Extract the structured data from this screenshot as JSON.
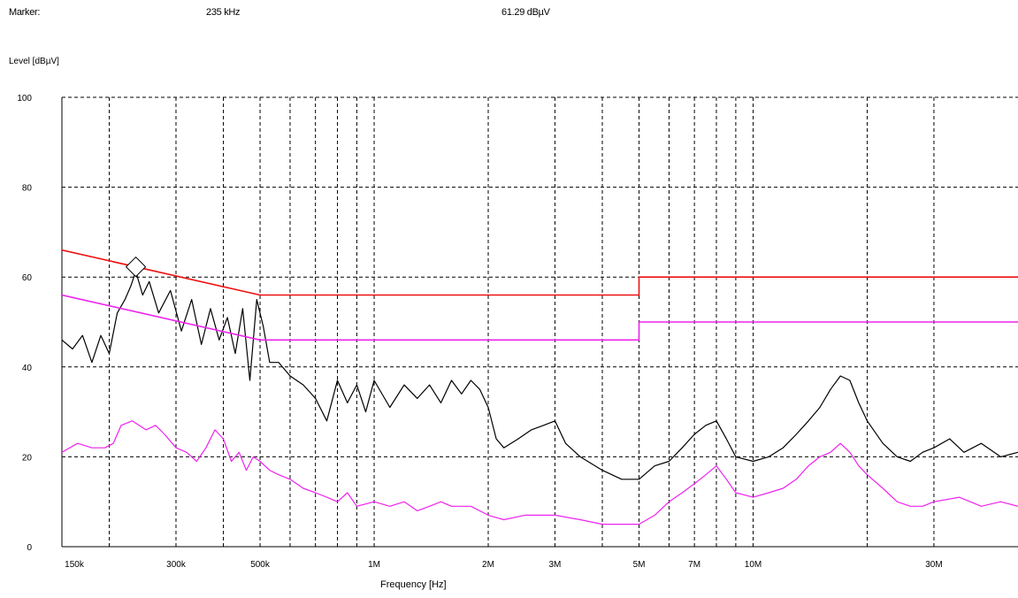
{
  "header": {
    "marker_label": "Marker:",
    "marker_freq": "235 kHz",
    "marker_level": "61.29 dBµV"
  },
  "colors": {
    "limit_qp": "#ee1111",
    "limit_avg": "#ee22ee",
    "trace_peak": "#000000",
    "trace_avg": "#ee22ee",
    "grid": "#000000"
  },
  "chart_data": {
    "type": "line",
    "xscale": "log",
    "xlabel": "Frequency [Hz]",
    "ylabel": "Level [dBµV]",
    "xlim": [
      150000,
      50000000
    ],
    "ylim": [
      0,
      100
    ],
    "grid": true,
    "yticks": [
      {
        "value": 0,
        "label": "0"
      },
      {
        "value": 20,
        "label": "20"
      },
      {
        "value": 40,
        "label": "40"
      },
      {
        "value": 60,
        "label": "60"
      },
      {
        "value": 80,
        "label": "80"
      },
      {
        "value": 100,
        "label": "100"
      }
    ],
    "xticks": [
      {
        "value": 150000,
        "label": "150k"
      },
      {
        "value": 300000,
        "label": "300k"
      },
      {
        "value": 500000,
        "label": "500k"
      },
      {
        "value": 1000000,
        "label": "1M"
      },
      {
        "value": 2000000,
        "label": "2M"
      },
      {
        "value": 3000000,
        "label": "3M"
      },
      {
        "value": 5000000,
        "label": "5M"
      },
      {
        "value": 7000000,
        "label": "7M"
      },
      {
        "value": 10000000,
        "label": "10M"
      },
      {
        "value": 30000000,
        "label": "30M"
      }
    ],
    "gridlines_x": [
      200000,
      300000,
      400000,
      500000,
      600000,
      700000,
      800000,
      900000,
      1000000,
      2000000,
      3000000,
      4000000,
      5000000,
      6000000,
      7000000,
      8000000,
      9000000,
      10000000,
      20000000,
      30000000
    ],
    "marker": {
      "x": 235000,
      "y": 61.29
    },
    "series": [
      {
        "key": "limit_qp",
        "points": [
          [
            150000,
            66
          ],
          [
            500000,
            56
          ],
          [
            5000000,
            56
          ],
          [
            5000000,
            60
          ],
          [
            50000000,
            60
          ]
        ]
      },
      {
        "key": "limit_avg",
        "points": [
          [
            150000,
            56
          ],
          [
            500000,
            46
          ],
          [
            5000000,
            46
          ],
          [
            5000000,
            50
          ],
          [
            50000000,
            50
          ]
        ]
      },
      {
        "key": "trace_peak",
        "points": [
          [
            150000,
            46
          ],
          [
            160000,
            44
          ],
          [
            170000,
            47
          ],
          [
            180000,
            41
          ],
          [
            190000,
            47
          ],
          [
            200000,
            43
          ],
          [
            210000,
            52
          ],
          [
            220000,
            55
          ],
          [
            228000,
            58
          ],
          [
            235000,
            61.3
          ],
          [
            245000,
            56
          ],
          [
            255000,
            59
          ],
          [
            270000,
            52
          ],
          [
            290000,
            57
          ],
          [
            310000,
            48
          ],
          [
            330000,
            55
          ],
          [
            350000,
            45
          ],
          [
            370000,
            53
          ],
          [
            390000,
            46
          ],
          [
            410000,
            51
          ],
          [
            430000,
            43
          ],
          [
            450000,
            53
          ],
          [
            470000,
            37
          ],
          [
            490000,
            55
          ],
          [
            510000,
            49
          ],
          [
            530000,
            41
          ],
          [
            560000,
            41
          ],
          [
            600000,
            38
          ],
          [
            650000,
            36
          ],
          [
            700000,
            33
          ],
          [
            750000,
            28
          ],
          [
            800000,
            37
          ],
          [
            850000,
            32
          ],
          [
            900000,
            36
          ],
          [
            950000,
            30
          ],
          [
            1000000,
            37
          ],
          [
            1100000,
            31
          ],
          [
            1200000,
            36
          ],
          [
            1300000,
            33
          ],
          [
            1400000,
            36
          ],
          [
            1500000,
            32
          ],
          [
            1600000,
            37
          ],
          [
            1700000,
            34
          ],
          [
            1800000,
            37
          ],
          [
            1900000,
            35
          ],
          [
            2000000,
            31
          ],
          [
            2100000,
            24
          ],
          [
            2200000,
            22
          ],
          [
            2400000,
            24
          ],
          [
            2600000,
            26
          ],
          [
            2800000,
            27
          ],
          [
            3000000,
            28
          ],
          [
            3200000,
            23
          ],
          [
            3500000,
            20
          ],
          [
            4000000,
            17
          ],
          [
            4500000,
            15
          ],
          [
            5000000,
            15
          ],
          [
            5500000,
            18
          ],
          [
            6000000,
            19
          ],
          [
            6500000,
            22
          ],
          [
            7000000,
            25
          ],
          [
            7500000,
            27
          ],
          [
            8000000,
            28
          ],
          [
            8500000,
            24
          ],
          [
            9000000,
            20
          ],
          [
            10000000,
            19
          ],
          [
            11000000,
            20
          ],
          [
            12000000,
            22
          ],
          [
            13000000,
            25
          ],
          [
            14000000,
            28
          ],
          [
            15000000,
            31
          ],
          [
            16000000,
            35
          ],
          [
            17000000,
            38
          ],
          [
            18000000,
            37
          ],
          [
            19000000,
            32
          ],
          [
            20000000,
            28
          ],
          [
            22000000,
            23
          ],
          [
            24000000,
            20
          ],
          [
            26000000,
            19
          ],
          [
            28000000,
            21
          ],
          [
            30000000,
            22
          ],
          [
            33000000,
            24
          ],
          [
            36000000,
            21
          ],
          [
            40000000,
            23
          ],
          [
            45000000,
            20
          ],
          [
            50000000,
            21
          ]
        ]
      },
      {
        "key": "trace_avg",
        "points": [
          [
            150000,
            21
          ],
          [
            165000,
            23
          ],
          [
            180000,
            22
          ],
          [
            195000,
            22
          ],
          [
            205000,
            23
          ],
          [
            215000,
            27
          ],
          [
            230000,
            28
          ],
          [
            250000,
            26
          ],
          [
            265000,
            27
          ],
          [
            280000,
            25
          ],
          [
            300000,
            22
          ],
          [
            320000,
            21
          ],
          [
            340000,
            19
          ],
          [
            360000,
            22
          ],
          [
            380000,
            26
          ],
          [
            400000,
            24
          ],
          [
            420000,
            19
          ],
          [
            440000,
            21
          ],
          [
            460000,
            17
          ],
          [
            480000,
            20
          ],
          [
            500000,
            19
          ],
          [
            530000,
            17
          ],
          [
            560000,
            16
          ],
          [
            600000,
            15
          ],
          [
            650000,
            13
          ],
          [
            700000,
            12
          ],
          [
            750000,
            11
          ],
          [
            800000,
            10
          ],
          [
            850000,
            12
          ],
          [
            900000,
            9
          ],
          [
            1000000,
            10
          ],
          [
            1100000,
            9
          ],
          [
            1200000,
            10
          ],
          [
            1300000,
            8
          ],
          [
            1400000,
            9
          ],
          [
            1500000,
            10
          ],
          [
            1600000,
            9
          ],
          [
            1800000,
            9
          ],
          [
            2000000,
            7
          ],
          [
            2200000,
            6
          ],
          [
            2500000,
            7
          ],
          [
            3000000,
            7
          ],
          [
            3500000,
            6
          ],
          [
            4000000,
            5
          ],
          [
            4500000,
            5
          ],
          [
            5000000,
            5
          ],
          [
            5500000,
            7
          ],
          [
            6000000,
            10
          ],
          [
            6500000,
            12
          ],
          [
            7000000,
            14
          ],
          [
            7500000,
            16
          ],
          [
            8000000,
            18
          ],
          [
            8500000,
            15
          ],
          [
            9000000,
            12
          ],
          [
            10000000,
            11
          ],
          [
            11000000,
            12
          ],
          [
            12000000,
            13
          ],
          [
            13000000,
            15
          ],
          [
            14000000,
            18
          ],
          [
            15000000,
            20
          ],
          [
            16000000,
            21
          ],
          [
            17000000,
            23
          ],
          [
            18000000,
            21
          ],
          [
            19000000,
            18
          ],
          [
            20000000,
            16
          ],
          [
            22000000,
            13
          ],
          [
            24000000,
            10
          ],
          [
            26000000,
            9
          ],
          [
            28000000,
            9
          ],
          [
            30000000,
            10
          ],
          [
            35000000,
            11
          ],
          [
            40000000,
            9
          ],
          [
            45000000,
            10
          ],
          [
            50000000,
            9
          ]
        ]
      }
    ]
  }
}
